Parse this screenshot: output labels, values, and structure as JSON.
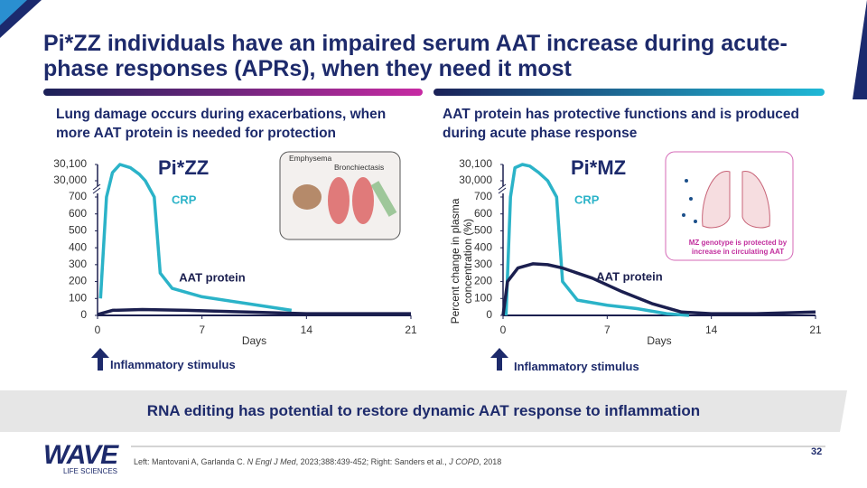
{
  "header": {
    "title": "Pi*ZZ individuals have an impaired serum AAT increase during acute-phase responses (APRs), when they need it most"
  },
  "panels": [
    {
      "heading": "Lung damage occurs during exacerbations, when more AAT protein is needed for protection",
      "image_labels": [
        "Emphysema",
        "Bronchiectasis"
      ],
      "stimulus_label": "Inflammatory stimulus",
      "chart": {
        "type": "line",
        "title": "Pi*ZZ",
        "xlabel": "Days",
        "xlim": [
          0,
          21
        ],
        "xticks": [
          0,
          7,
          14,
          21
        ],
        "ylim": [
          0,
          30100
        ],
        "axis_break": [
          700,
          30000
        ],
        "yticks": [
          0,
          100,
          200,
          300,
          400,
          500,
          600,
          700,
          {
            "value": 30000,
            "label": "30,000"
          },
          {
            "value": 30100,
            "label": "30,100"
          }
        ],
        "series": [
          {
            "name": "CRP",
            "color": "#2bb3c8",
            "x": [
              0.2,
              0.6,
              1.0,
              1.5,
              2.2,
              2.8,
              3.2,
              3.8,
              4.2,
              5,
              7,
              10,
              13
            ],
            "values": [
              100,
              700,
              30050,
              30100,
              30080,
              30040,
              30000,
              700,
              250,
              160,
              110,
              70,
              30
            ]
          },
          {
            "name": "AAT protein",
            "color": "#1b1f4f",
            "x": [
              0,
              1,
              3,
              6,
              10,
              14,
              21
            ],
            "values": [
              5,
              30,
              35,
              30,
              20,
              10,
              10
            ]
          }
        ]
      }
    },
    {
      "heading": "AAT protein has protective functions and is produced during acute phase response",
      "image_labels": [
        "MZ genotype is protected by increase in circulating AAT"
      ],
      "stimulus_label": "Inflammatory stimulus",
      "chart": {
        "type": "line",
        "title": "Pi*MZ",
        "xlabel": "Days",
        "ylabel": "Percent change in plasma concentration (%)",
        "xlim": [
          0,
          21
        ],
        "xticks": [
          0,
          7,
          14,
          21
        ],
        "ylim": [
          0,
          30100
        ],
        "axis_break": [
          700,
          30000
        ],
        "yticks": [
          0,
          100,
          200,
          300,
          400,
          500,
          600,
          700,
          {
            "value": 30000,
            "label": "30,000"
          },
          {
            "value": 30100,
            "label": "30,100"
          }
        ],
        "series": [
          {
            "name": "CRP",
            "color": "#2bb3c8",
            "x": [
              0.2,
              0.5,
              0.8,
              1.3,
              1.8,
              2.4,
              3.0,
              3.6,
              4.0,
              5,
              7,
              9,
              11,
              12.5
            ],
            "values": [
              0,
              700,
              30080,
              30100,
              30090,
              30050,
              30000,
              700,
              200,
              90,
              60,
              40,
              10,
              0
            ]
          },
          {
            "name": "AAT protein",
            "color": "#1b1f4f",
            "x": [
              0,
              0.3,
              1,
              2,
              3,
              4,
              6,
              8,
              10,
              12,
              14,
              17,
              21
            ],
            "values": [
              0,
              200,
              280,
              305,
              300,
              280,
              220,
              140,
              70,
              20,
              10,
              10,
              20
            ]
          }
        ]
      }
    }
  ],
  "banner": "RNA editing has potential to restore dynamic AAT response to inflammation",
  "footer": {
    "page_number": "32",
    "reference": [
      "Left: Mantovani A, Garlanda C. ",
      "N Engl J Med",
      ", 2023;388:439-452; Right: Sanders et al., ",
      "J COPD",
      ", 2018"
    ]
  },
  "logo": {
    "name": "WAVE",
    "tagline": "LIFE SCIENCES"
  }
}
